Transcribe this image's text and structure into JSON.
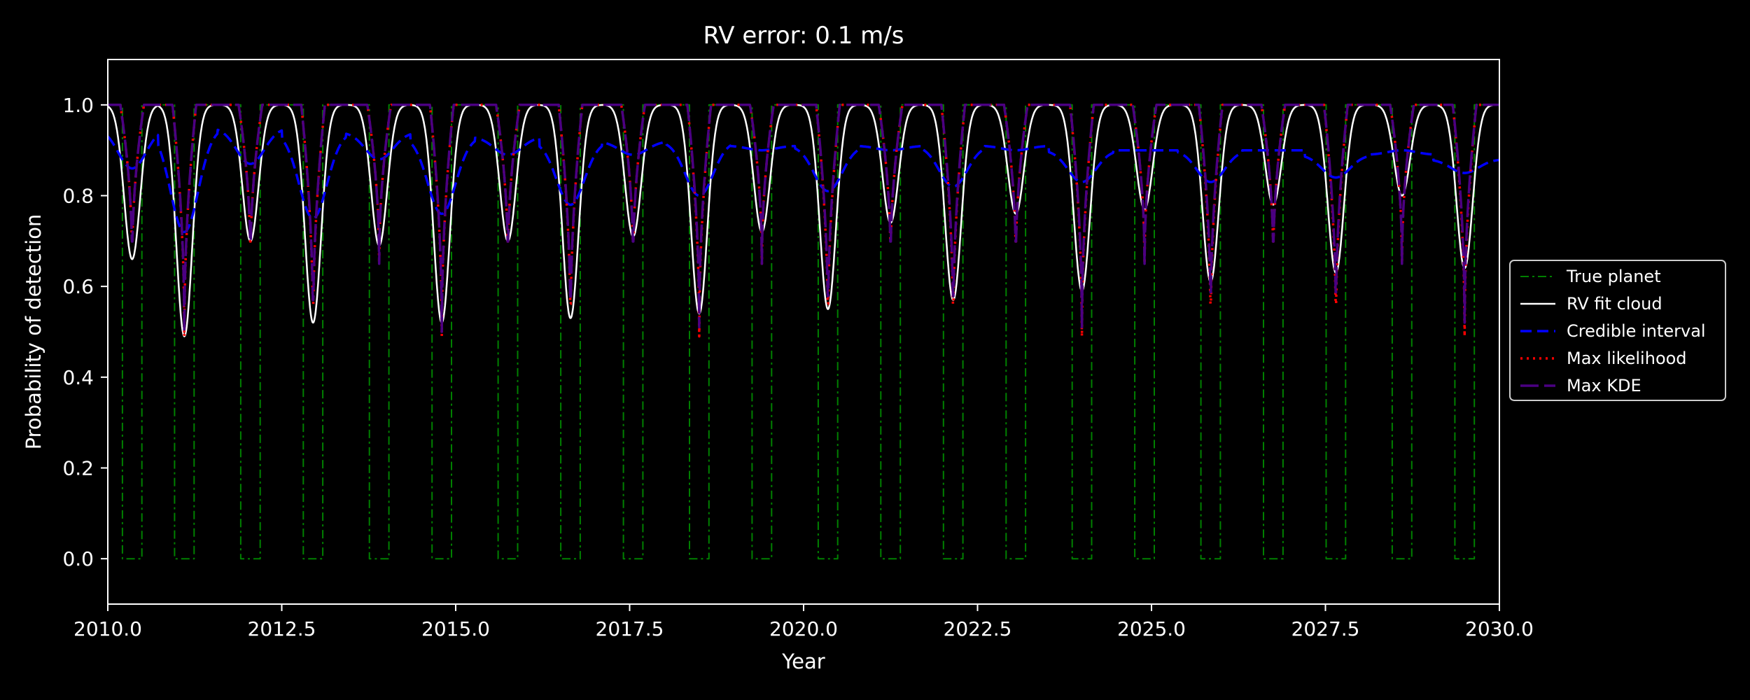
{
  "chart_data": {
    "type": "line",
    "title": "RV error: 0.1 m/s",
    "xlabel": "Year",
    "ylabel": "Probability of detection",
    "xlim": [
      2010.0,
      2030.0
    ],
    "ylim": [
      -0.1,
      1.1
    ],
    "x_ticks": [
      "2010.0",
      "2012.5",
      "2015.0",
      "2017.5",
      "2020.0",
      "2022.5",
      "2025.0",
      "2027.5",
      "2030.0"
    ],
    "y_ticks": [
      "0.0",
      "0.2",
      "0.4",
      "0.6",
      "0.8",
      "1.0"
    ],
    "grid": false,
    "legend_position": "right",
    "dip_centers": [
      2010.35,
      2011.1,
      2012.05,
      2012.95,
      2013.9,
      2014.8,
      2015.75,
      2016.65,
      2017.55,
      2018.5,
      2019.4,
      2020.35,
      2021.25,
      2022.15,
      2023.05,
      2024.0,
      2024.9,
      2025.85,
      2026.75,
      2027.65,
      2028.6,
      2029.5
    ],
    "series": [
      {
        "name": "True planet",
        "color": "#008000",
        "style": "dash-dot",
        "values_high": 1.0,
        "values_low": 0.0,
        "gap_width_years": 0.28
      },
      {
        "name": "RV fit cloud",
        "color": "#ffffff",
        "style": "solid",
        "dip_min": [
          0.66,
          0.49,
          0.7,
          0.52,
          0.69,
          0.52,
          0.7,
          0.53,
          0.71,
          0.54,
          0.72,
          0.55,
          0.74,
          0.57,
          0.76,
          0.59,
          0.77,
          0.61,
          0.78,
          0.63,
          0.8,
          0.64
        ]
      },
      {
        "name": "Credible interval",
        "color": "#0000ff",
        "style": "dashed",
        "dip_min": [
          0.86,
          0.72,
          0.87,
          0.75,
          0.88,
          0.76,
          0.89,
          0.78,
          0.89,
          0.8,
          0.9,
          0.81,
          0.9,
          0.82,
          0.9,
          0.83,
          0.9,
          0.83,
          0.9,
          0.84,
          0.9,
          0.85
        ],
        "peak_max": [
          0.95,
          0.95,
          0.95,
          0.94,
          0.94,
          0.93,
          0.93,
          0.92,
          0.92,
          0.92,
          0.91,
          0.91,
          0.91,
          0.91,
          0.91,
          0.9,
          0.9,
          0.9,
          0.9,
          0.89,
          0.89,
          0.88
        ]
      },
      {
        "name": "Max likelihood",
        "color": "#ff0000",
        "style": "dotted",
        "dip_min": [
          0.65,
          0.49,
          0.65,
          0.49,
          0.65,
          0.49,
          0.65,
          0.49,
          0.65,
          0.49,
          0.65,
          0.49,
          0.65,
          0.49,
          0.65,
          0.49,
          0.65,
          0.49,
          0.65,
          0.49,
          0.65,
          0.49
        ]
      },
      {
        "name": "Max KDE",
        "color": "#4b0082",
        "style": "long-dash",
        "dip_min": [
          0.65,
          0.5,
          0.65,
          0.5,
          0.65,
          0.5,
          0.65,
          0.5,
          0.65,
          0.51,
          0.65,
          0.51,
          0.65,
          0.51,
          0.65,
          0.51,
          0.65,
          0.52,
          0.65,
          0.52,
          0.65,
          0.52
        ]
      }
    ]
  }
}
